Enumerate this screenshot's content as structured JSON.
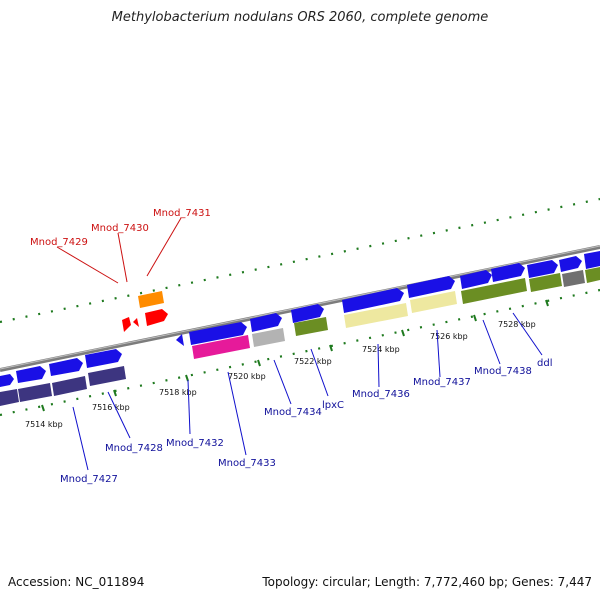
{
  "title": "Methylobacterium nodulans ORS 2060, complete genome",
  "footer": {
    "accession": "Accession: NC_011894",
    "summary": "Topology: circular; Length: 7,772,460 bp; Genes: 7,447"
  },
  "colors": {
    "blue": "#1a10e6",
    "backbone": "#8a8a8a",
    "tick_green": "#1f7a1f",
    "label_blue": "#10109a",
    "label_red": "#cc1111"
  },
  "scale_labels": [
    "7514 kbp",
    "7516 kbp",
    "7518 kbp",
    "7520 kbp",
    "7522 kbp",
    "7524 kbp",
    "7526 kbp",
    "7528 kbp"
  ],
  "genes": {
    "red": [
      "Mnod_7429",
      "Mnod_7430",
      "Mnod_7431"
    ],
    "blue": [
      "Mnod_7427",
      "Mnod_7428",
      "Mnod_7432",
      "Mnod_7433",
      "Mnod_7434",
      "lpxC",
      "Mnod_7436",
      "Mnod_7437",
      "Mnod_7438",
      "ddl"
    ]
  }
}
